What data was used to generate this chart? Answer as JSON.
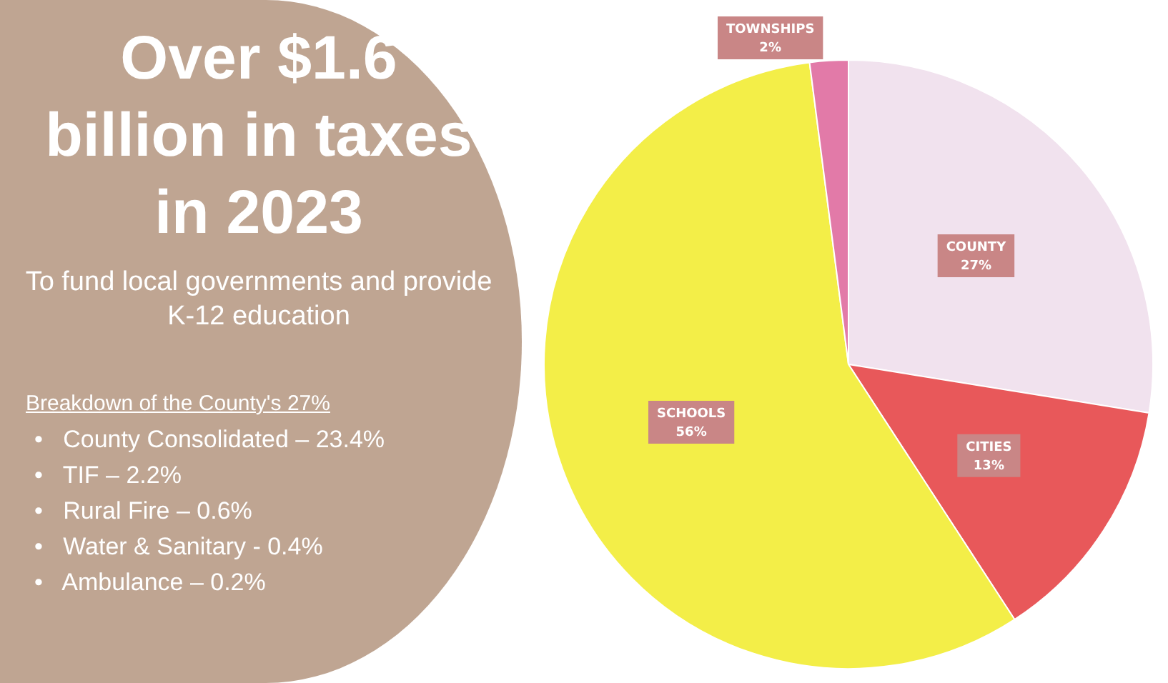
{
  "chart_data": {
    "type": "pie",
    "title": "Over $1.6 billion in taxes in 2023",
    "subtitle": "To fund local governments and provide K-12 education",
    "categories": [
      "COUNTY",
      "CITIES",
      "SCHOOLS",
      "TOWNSHIPS"
    ],
    "values": [
      27,
      13,
      56,
      2
    ],
    "colors": [
      "#f1e2ee",
      "#e8585a",
      "#f3ee48",
      "#e27aa8"
    ],
    "value_labels": [
      "27%",
      "13%",
      "56%",
      "2%"
    ],
    "legend": false,
    "annotations": [
      "Breakdown of the County's 27%",
      "•   County Consolidated – 23.4%",
      "•   TIF – 2.2%",
      "•   Rural Fire – 0.6%",
      "•   Water & Sanitary - 0.4%",
      "•   Ambulance – 0.2%"
    ]
  }
}
